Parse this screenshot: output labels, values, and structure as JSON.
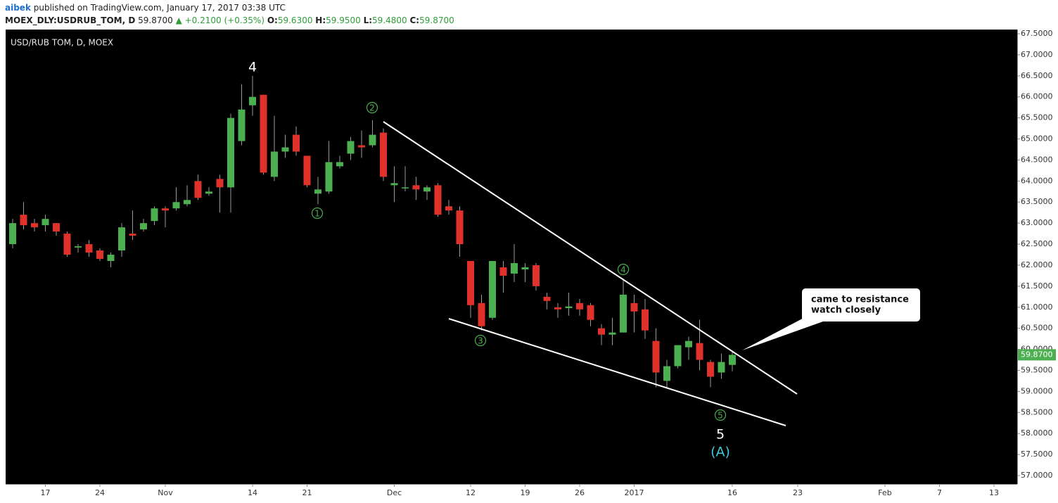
{
  "header": {
    "author": "aibek",
    "published": "published on TradingView.com, January 17, 2017 03:38 UTC",
    "symbol": "MOEX_DLY:USDRUB_TOM, D",
    "last": "59.8700",
    "change": "▲ +0.2100 (+0.35%)",
    "ohlc": [
      {
        "key": "O:",
        "value": "59.6300"
      },
      {
        "key": "H:",
        "value": "59.9500"
      },
      {
        "key": "L:",
        "value": "59.4800"
      },
      {
        "key": "C:",
        "value": "59.8700"
      }
    ]
  },
  "chart_data": {
    "type": "candlestick",
    "title": "USD/RUB TOM, D, MOEX",
    "categories": [
      null,
      null,
      null,
      "17",
      null,
      null,
      null,
      null,
      "24",
      null,
      null,
      null,
      null,
      null,
      "Nov",
      null,
      null,
      null,
      null,
      null,
      null,
      null,
      "14",
      null,
      null,
      null,
      null,
      "21",
      null,
      null,
      null,
      null,
      null,
      null,
      null,
      "Dec",
      null,
      null,
      null,
      null,
      null,
      null,
      "12",
      null,
      null,
      null,
      null,
      "19",
      null,
      null,
      null,
      null,
      "26",
      null,
      null,
      null,
      null,
      "2017",
      null,
      null,
      null,
      null,
      null,
      null,
      null,
      null,
      "16",
      null,
      null,
      null,
      null,
      null,
      "23",
      null,
      null,
      null,
      null,
      null,
      null,
      null,
      "Feb",
      null,
      null,
      null,
      null,
      "7",
      null,
      null,
      null,
      null,
      "13"
    ],
    "open": [
      62.5,
      63.2,
      63.0,
      62.95,
      63.0,
      62.75,
      62.42,
      62.5,
      62.35,
      62.1,
      62.35,
      62.75,
      62.85,
      63.05,
      63.35,
      63.35,
      63.45,
      64.0,
      63.7,
      64.05,
      63.85,
      64.95,
      65.8,
      66.05,
      64.1,
      64.7,
      65.1,
      64.6,
      63.7,
      63.75,
      64.35,
      64.65,
      64.85,
      64.85,
      65.15,
      63.9,
      63.85,
      63.9,
      63.75,
      63.9,
      63.4,
      63.3,
      62.1,
      61.1,
      60.75,
      61.95,
      61.8,
      61.9,
      62.0,
      61.25,
      61.0,
      60.98,
      61.1,
      61.05,
      60.5,
      60.35,
      60.4,
      61.1,
      60.95,
      60.2,
      59.25,
      59.6,
      60.05,
      60.15,
      59.7,
      59.45,
      59.63,
      null,
      null,
      null,
      null,
      null,
      null,
      null,
      null,
      null,
      null,
      null,
      null,
      null,
      null,
      null,
      null,
      null,
      null,
      null,
      null,
      null,
      null,
      null,
      null
    ],
    "high": [
      63.1,
      63.5,
      63.1,
      63.2,
      63.0,
      62.8,
      62.5,
      62.6,
      62.4,
      62.3,
      63.0,
      63.3,
      63.1,
      63.4,
      63.4,
      63.85,
      63.9,
      64.15,
      63.85,
      64.15,
      65.6,
      66.3,
      66.5,
      66.05,
      65.55,
      65.1,
      65.3,
      64.6,
      64.1,
      64.95,
      64.6,
      65.05,
      65.2,
      65.45,
      65.25,
      64.35,
      64.35,
      64.1,
      63.9,
      63.95,
      63.55,
      63.4,
      62.1,
      61.3,
      62.1,
      62.1,
      62.5,
      62.05,
      62.05,
      61.35,
      61.1,
      61.35,
      61.2,
      61.1,
      60.6,
      60.75,
      61.65,
      61.3,
      61.2,
      60.5,
      59.75,
      60.1,
      60.3,
      60.7,
      59.75,
      59.9,
      59.95,
      null,
      null,
      null,
      null,
      null,
      null,
      null,
      null,
      null,
      null,
      null,
      null,
      null,
      null,
      null,
      null,
      null,
      null,
      null,
      null,
      null,
      null,
      null,
      null
    ],
    "low": [
      62.4,
      62.85,
      62.8,
      62.8,
      62.7,
      62.2,
      62.3,
      62.2,
      62.1,
      61.95,
      62.2,
      62.6,
      62.8,
      62.95,
      62.9,
      63.3,
      63.4,
      63.55,
      63.65,
      63.25,
      63.25,
      64.85,
      65.55,
      64.15,
      64.0,
      64.55,
      64.6,
      63.85,
      63.45,
      63.7,
      64.3,
      64.5,
      64.55,
      64.8,
      64.0,
      63.5,
      63.75,
      63.55,
      63.55,
      63.15,
      63.2,
      62.2,
      60.75,
      60.45,
      60.7,
      61.35,
      61.6,
      61.6,
      61.4,
      60.95,
      60.75,
      60.8,
      60.8,
      60.55,
      60.1,
      60.1,
      60.4,
      60.4,
      60.25,
      59.1,
      59.1,
      59.55,
      59.75,
      59.5,
      59.1,
      59.3,
      59.48,
      null,
      null,
      null,
      null,
      null,
      null,
      null,
      null,
      null,
      null,
      null,
      null,
      null,
      null,
      null,
      null,
      null,
      null,
      null,
      null,
      null,
      null,
      null,
      null
    ],
    "close": [
      63.0,
      62.95,
      62.9,
      63.1,
      62.8,
      62.25,
      62.45,
      62.3,
      62.15,
      62.25,
      62.9,
      62.7,
      63.0,
      63.35,
      63.3,
      63.5,
      63.55,
      63.6,
      63.75,
      63.85,
      65.5,
      65.7,
      66.0,
      64.2,
      64.7,
      64.8,
      64.7,
      63.9,
      63.8,
      64.45,
      64.45,
      64.95,
      64.8,
      65.1,
      64.1,
      63.95,
      63.85,
      63.8,
      63.85,
      63.2,
      63.3,
      62.5,
      61.05,
      60.55,
      62.1,
      61.75,
      62.05,
      61.95,
      61.5,
      61.15,
      60.95,
      61.02,
      60.95,
      60.7,
      60.35,
      60.4,
      61.3,
      60.9,
      60.45,
      59.45,
      59.6,
      60.1,
      60.2,
      59.75,
      59.35,
      59.7,
      59.87,
      null,
      null,
      null,
      null,
      null,
      null,
      null,
      null,
      null,
      null,
      null,
      null,
      null,
      null,
      null,
      null,
      null,
      null,
      null,
      null,
      null,
      null,
      null,
      null
    ],
    "up_color": "#4caf50",
    "down_color": "#e0312a",
    "wick_color": "#999999",
    "background": "#000000",
    "ylim": [
      56.8,
      67.6
    ],
    "yticks": [
      {
        "value": 57,
        "label": "57.0000"
      },
      {
        "value": 57.5,
        "label": "57.5000"
      },
      {
        "value": 58,
        "label": "58.0000"
      },
      {
        "value": 58.5,
        "label": "58.5000"
      },
      {
        "value": 59,
        "label": "59.0000"
      },
      {
        "value": 59.5,
        "label": "59.5000"
      },
      {
        "value": 60,
        "label": "60.0000"
      },
      {
        "value": 60.5,
        "label": "60.5000"
      },
      {
        "value": 61,
        "label": "61.0000"
      },
      {
        "value": 61.5,
        "label": "61.5000"
      },
      {
        "value": 62,
        "label": "62.0000"
      },
      {
        "value": 62.5,
        "label": "62.5000"
      },
      {
        "value": 63,
        "label": "63.0000"
      },
      {
        "value": 63.5,
        "label": "63.5000"
      },
      {
        "value": 64,
        "label": "64.0000"
      },
      {
        "value": 64.5,
        "label": "64.5000"
      },
      {
        "value": 65,
        "label": "65.0000"
      },
      {
        "value": 65.5,
        "label": "65.5000"
      },
      {
        "value": 66,
        "label": "66.0000"
      },
      {
        "value": 66.5,
        "label": "66.5000"
      },
      {
        "value": 67,
        "label": "67.0000"
      },
      {
        "value": 67.5,
        "label": "67.5000"
      }
    ],
    "price_label": {
      "value": 59.87,
      "label": "59.8700"
    },
    "grid": false,
    "annotations": {
      "wave_4": "4",
      "wave_5": "5",
      "wave_a": "(A)",
      "sub_1": "1",
      "sub_2": "2",
      "sub_3": "3",
      "sub_4": "4",
      "sub_5": "5",
      "callout": [
        "came to resistance",
        "watch closely"
      ]
    }
  }
}
